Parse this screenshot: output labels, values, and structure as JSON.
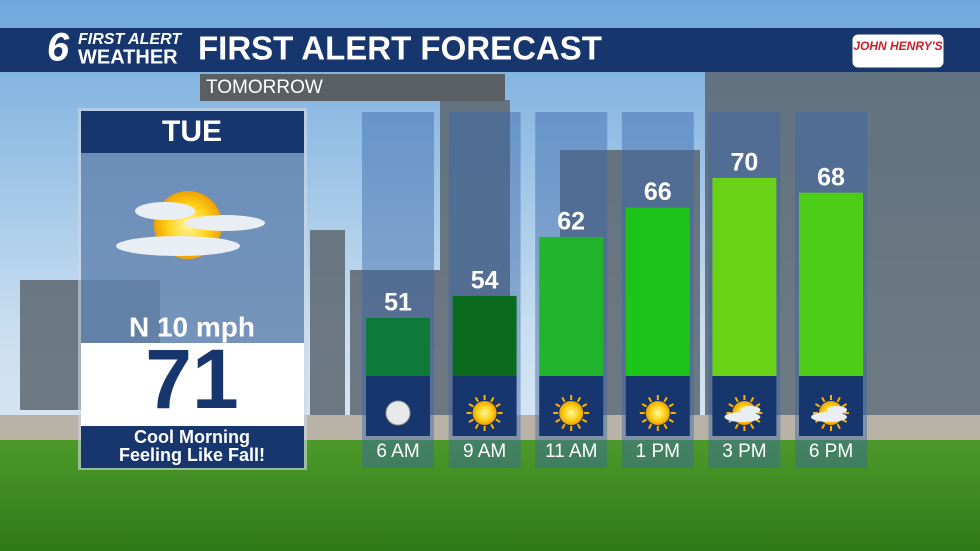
{
  "header": {
    "logo_number": "6",
    "logo_line1": "FIRST ALERT",
    "logo_line2": "WEATHER",
    "title": "FIRST ALERT FORECAST",
    "sponsor": "JOHN HENRY'S",
    "subtitle": "TOMORROW"
  },
  "day_panel": {
    "day": "TUE",
    "wind": "N 10 mph",
    "high": 71,
    "caption_line1": "Cool Morning",
    "caption_line2": "Feeling Like Fall!"
  },
  "chart_data": {
    "type": "bar",
    "categories": [
      "6 AM",
      "9 AM",
      "11 AM",
      "1 PM",
      "3 PM",
      "6 PM"
    ],
    "values": [
      51,
      54,
      62,
      66,
      70,
      68
    ],
    "colors": [
      "#0e7a3a",
      "#0a6b1e",
      "#22b42a",
      "#1cc41a",
      "#6ad216",
      "#4ecd18"
    ]
  }
}
